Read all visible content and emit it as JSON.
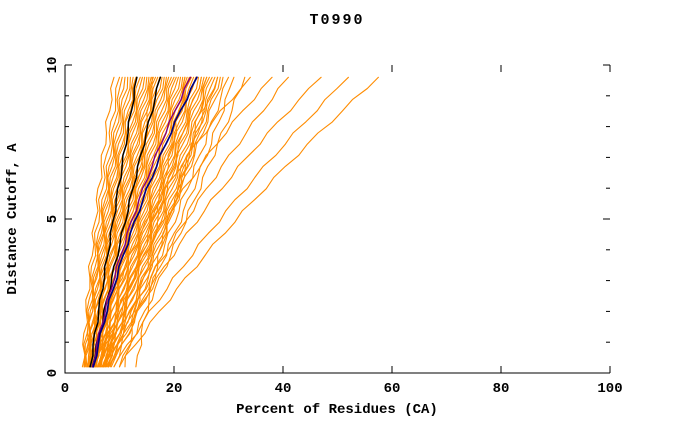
{
  "chart_data": {
    "type": "line",
    "title": "T0990",
    "xlabel": "Percent of Residues (CA)",
    "ylabel": "Distance Cutoff, A",
    "xlim": [
      0,
      100
    ],
    "ylim": [
      0,
      10
    ],
    "grid": false,
    "legend": "none",
    "x_ticks": {
      "values": [
        0,
        20,
        40,
        60,
        80,
        100
      ],
      "labels": [
        "0",
        "20",
        "40",
        "60",
        "80",
        "100"
      ]
    },
    "y_ticks": {
      "values": [
        0,
        5,
        10
      ],
      "labels": [
        "0",
        "5",
        "10"
      ]
    },
    "y_minor_values": [
      1,
      2,
      3,
      4,
      6,
      7,
      8,
      9
    ],
    "colors": {
      "models": "#ff8c00",
      "reference_black": "#000000",
      "highlight_purple": "#800080",
      "highlight_navy": "#000080",
      "axis": "#000000",
      "background": "#ffffff"
    },
    "line_y_range": [
      0.2,
      9.6
    ],
    "series_groups": [
      {
        "name": "server-model-lines",
        "color_key": "models",
        "width": 1.1,
        "jitter": 0.35,
        "lines": [
          [
            3.2,
            5.5,
            9
          ],
          [
            3.5,
            6,
            10
          ],
          [
            3.6,
            6.5,
            10.5
          ],
          [
            3.8,
            6.8,
            11
          ],
          [
            4,
            7,
            11.5
          ],
          [
            3.5,
            7.2,
            12
          ],
          [
            4.2,
            7.5,
            12.5
          ],
          [
            4,
            7.8,
            13
          ],
          [
            4.4,
            8,
            13.2
          ],
          [
            4.6,
            8.3,
            13.8
          ],
          [
            4.2,
            8.6,
            14.2
          ],
          [
            4.8,
            8.8,
            14.6
          ],
          [
            5,
            9,
            15
          ],
          [
            4.4,
            9.3,
            15.4
          ],
          [
            5.2,
            9.6,
            15.8
          ],
          [
            4.6,
            9.8,
            16.2
          ],
          [
            5.4,
            10,
            16.6
          ],
          [
            4.8,
            10.3,
            17
          ],
          [
            5.6,
            10.6,
            17.4
          ],
          [
            5,
            10.9,
            17.8
          ],
          [
            5.8,
            11.2,
            18.2
          ],
          [
            5.2,
            11.5,
            18.6
          ],
          [
            6,
            11.8,
            19
          ],
          [
            5.4,
            12.1,
            19.5
          ],
          [
            6.2,
            12.4,
            20
          ],
          [
            5.6,
            12.7,
            20.4
          ],
          [
            6.4,
            13,
            20.8
          ],
          [
            5.8,
            13.3,
            21.2
          ],
          [
            6.6,
            13.6,
            21.6
          ],
          [
            6,
            13.9,
            22
          ],
          [
            6.8,
            14.2,
            22.4
          ],
          [
            6.2,
            14.5,
            22.8
          ],
          [
            7,
            14.8,
            23.2
          ],
          [
            6.4,
            15.1,
            23.6
          ],
          [
            7.2,
            15.4,
            24
          ],
          [
            6.6,
            15.7,
            24.5
          ],
          [
            7.4,
            16,
            25
          ],
          [
            6.8,
            16.3,
            25.5
          ],
          [
            7.6,
            16.6,
            26
          ],
          [
            7,
            17,
            26.5
          ],
          [
            7.8,
            17.4,
            27
          ],
          [
            7.2,
            17.8,
            27.5
          ],
          [
            8,
            18.2,
            28
          ],
          [
            7.5,
            18.6,
            28.5
          ],
          [
            8.3,
            19,
            29
          ],
          [
            5,
            12,
            16
          ],
          [
            6,
            16,
            22
          ],
          [
            8,
            19,
            26
          ],
          [
            9,
            20,
            30
          ],
          [
            8.5,
            21,
            31
          ],
          [
            10,
            22,
            33
          ],
          [
            11,
            17,
            25
          ],
          [
            13,
            19,
            28
          ],
          [
            5.5,
            15,
            34
          ],
          [
            6,
            18,
            38
          ],
          [
            7,
            22,
            41
          ],
          [
            8,
            24,
            47
          ],
          [
            9,
            28,
            52
          ],
          [
            10,
            31,
            57.5
          ]
        ]
      },
      {
        "name": "reference-black-lines",
        "color_key": "reference_black",
        "width": 1.5,
        "jitter": 0.2,
        "lines": [
          [
            4.6,
            8.8,
            13.2
          ],
          [
            5,
            11,
            17.5
          ]
        ]
      },
      {
        "name": "highlight-purple-line",
        "color_key": "highlight_purple",
        "width": 1.4,
        "jitter": 0.2,
        "lines": [
          [
            5,
            12.2,
            23
          ]
        ]
      },
      {
        "name": "highlight-navy-line",
        "color_key": "highlight_navy",
        "width": 1.7,
        "jitter": 0.2,
        "lines": [
          [
            5.2,
            12.8,
            24.2
          ]
        ]
      }
    ]
  }
}
